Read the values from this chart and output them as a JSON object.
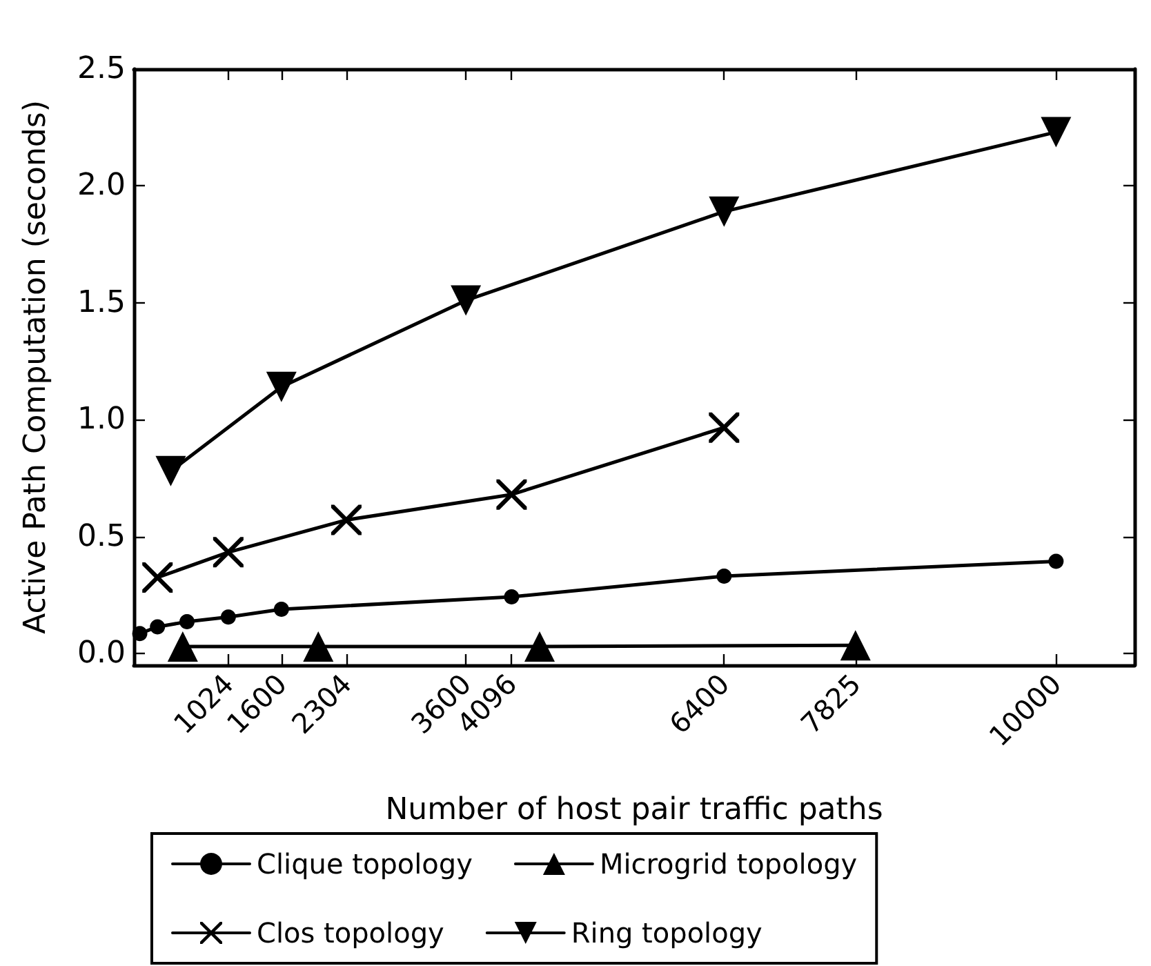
{
  "chart_data": {
    "type": "line",
    "xlabel": "Number of host pair traffic paths",
    "ylabel": "Active Path Computation (seconds)",
    "xlim": [
      0,
      10850
    ],
    "xticks": [
      1024,
      1600,
      2304,
      3600,
      4096,
      6400,
      7825,
      10000
    ],
    "ylim": [
      -0.05,
      2.5
    ],
    "yticks": [
      {
        "value": 0,
        "label": "0.0"
      },
      {
        "value": 0.5,
        "label": "0.5"
      },
      {
        "value": 1,
        "label": "1.0"
      },
      {
        "value": 1.5,
        "label": "1.5"
      },
      {
        "value": 2,
        "label": "2.0"
      },
      {
        "value": 2.5,
        "label": "2.5"
      }
    ],
    "grid": false,
    "legend": "bottom",
    "line_style": "solid",
    "series": [
      {
        "name": "Clique topology",
        "color": "#000000",
        "marker": "circle",
        "x": [
          64,
          256,
          576,
          1024,
          1600,
          4096,
          6400,
          10000
        ],
        "values": [
          0.085,
          0.114,
          0.136,
          0.156,
          0.189,
          0.242,
          0.331,
          0.394
        ]
      },
      {
        "name": "Clos topology",
        "color": "#000000",
        "marker": "cross",
        "x": [
          256,
          1024,
          2304,
          4096,
          6400
        ],
        "values": [
          0.325,
          0.433,
          0.571,
          0.68,
          0.966
        ]
      },
      {
        "name": "Microgrid topology",
        "color": "#000000",
        "marker": "triangle",
        "x": [
          530,
          2000,
          4400,
          7825
        ],
        "values": [
          0.03,
          0.03,
          0.03,
          0.035
        ]
      },
      {
        "name": "Ring topology",
        "color": "#000000",
        "marker": "triangle_down",
        "x": [
          400,
          1600,
          3600,
          6400,
          10000
        ],
        "values": [
          0.78,
          1.14,
          1.51,
          1.89,
          2.23
        ]
      }
    ]
  }
}
